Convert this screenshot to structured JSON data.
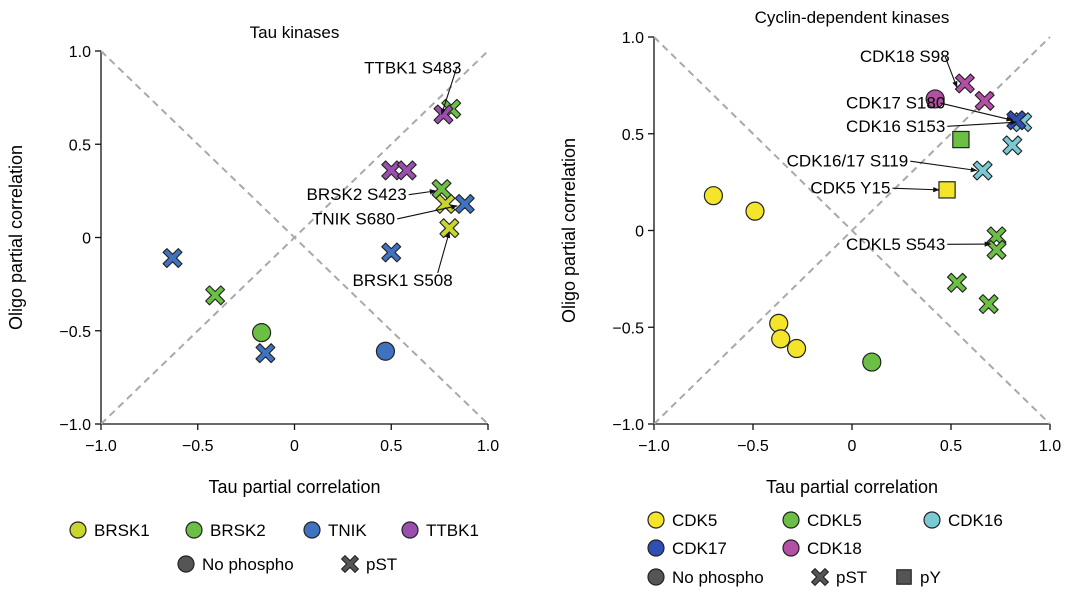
{
  "chart_data": [
    {
      "type": "scatter",
      "title": "Tau kinases",
      "xlabel": "Tau partial correlation",
      "ylabel": "Oligo partial correlation",
      "xlim": [
        -1.0,
        1.0
      ],
      "ylim": [
        -1.0,
        1.0
      ],
      "xticks": [
        "−1.0",
        "−0.5",
        "0",
        "0.5",
        "1.0"
      ],
      "yticks": [
        "−1.0",
        "−0.5",
        "0",
        "0.5",
        "1.0"
      ],
      "xtick_values": [
        -1.0,
        -0.5,
        0,
        0.5,
        1.0
      ],
      "ytick_values": [
        -1.0,
        -0.5,
        0,
        0.5,
        1.0
      ],
      "reference_lines": [
        "y = x",
        "y = -x"
      ],
      "series": [
        {
          "name": "BRSK1",
          "color": "#c9d62e",
          "points": [
            {
              "x": 0.78,
              "y": 0.18,
              "marker": "cross"
            },
            {
              "x": 0.8,
              "y": 0.05,
              "marker": "cross"
            }
          ]
        },
        {
          "name": "BRSK2",
          "color": "#6cbf45",
          "points": [
            {
              "x": -0.17,
              "y": -0.51,
              "marker": "circle"
            },
            {
              "x": -0.41,
              "y": -0.31,
              "marker": "cross"
            },
            {
              "x": 0.76,
              "y": 0.26,
              "marker": "cross"
            },
            {
              "x": 0.81,
              "y": 0.69,
              "marker": "cross"
            }
          ]
        },
        {
          "name": "TNIK",
          "color": "#3f73bf",
          "points": [
            {
              "x": 0.47,
              "y": -0.61,
              "marker": "circle"
            },
            {
              "x": -0.63,
              "y": -0.11,
              "marker": "cross"
            },
            {
              "x": -0.15,
              "y": -0.62,
              "marker": "cross"
            },
            {
              "x": 0.5,
              "y": -0.08,
              "marker": "cross"
            },
            {
              "x": 0.88,
              "y": 0.18,
              "marker": "cross"
            }
          ]
        },
        {
          "name": "TTBK1",
          "color": "#9a4fae",
          "points": [
            {
              "x": 0.5,
              "y": 0.36,
              "marker": "cross"
            },
            {
              "x": 0.58,
              "y": 0.36,
              "marker": "cross"
            },
            {
              "x": 0.77,
              "y": 0.66,
              "marker": "cross"
            }
          ]
        }
      ],
      "annotations": [
        {
          "text": "TTBK1 S483",
          "x": 0.36,
          "y": 0.88,
          "anchor": "start",
          "arrow_to": [
            0.76,
            0.66
          ]
        },
        {
          "text": "BRSK2 S423",
          "x": 0.58,
          "y": 0.2,
          "anchor": "end",
          "arrow_to": [
            0.73,
            0.25
          ]
        },
        {
          "text": "TNIK S680",
          "x": 0.52,
          "y": 0.07,
          "anchor": "end",
          "arrow_to": [
            0.84,
            0.17
          ]
        },
        {
          "text": "BRSK1 S508",
          "x": 0.3,
          "y": -0.26,
          "anchor": "start",
          "arrow_to": [
            0.8,
            0.03
          ]
        }
      ],
      "legend": {
        "position": "bottom",
        "entries": [
          {
            "label": "BRSK1",
            "color": "#c9d62e",
            "marker": "circle"
          },
          {
            "label": "BRSK2",
            "color": "#6cbf45",
            "marker": "circle"
          },
          {
            "label": "TNIK",
            "color": "#3f73bf",
            "marker": "circle"
          },
          {
            "label": "TTBK1",
            "color": "#9a4fae",
            "marker": "circle"
          }
        ],
        "shapes": [
          {
            "label": "No phospho",
            "marker": "circle"
          },
          {
            "label": "pST",
            "marker": "cross"
          }
        ]
      }
    },
    {
      "type": "scatter",
      "title": "Cyclin-dependent kinases",
      "xlabel": "Tau partial correlation",
      "ylabel": "Oligo partial correlation",
      "xlim": [
        -1.0,
        1.0
      ],
      "ylim": [
        -1.0,
        1.0
      ],
      "xticks": [
        "−1.0",
        "−0.5",
        "0",
        "0.5",
        "1.0"
      ],
      "yticks": [
        "−1.0",
        "−0.5",
        "0",
        "0.5",
        "1.0"
      ],
      "xtick_values": [
        -1.0,
        -0.5,
        0,
        0.5,
        1.0
      ],
      "ytick_values": [
        -1.0,
        -0.5,
        0,
        0.5,
        1.0
      ],
      "reference_lines": [
        "y = x",
        "y = -x"
      ],
      "series": [
        {
          "name": "CDK5",
          "color": "#f5e52a",
          "points": [
            {
              "x": -0.7,
              "y": 0.18,
              "marker": "circle"
            },
            {
              "x": -0.49,
              "y": 0.1,
              "marker": "circle"
            },
            {
              "x": -0.37,
              "y": -0.48,
              "marker": "circle"
            },
            {
              "x": -0.36,
              "y": -0.56,
              "marker": "circle"
            },
            {
              "x": -0.28,
              "y": -0.61,
              "marker": "circle"
            },
            {
              "x": 0.48,
              "y": 0.21,
              "marker": "square"
            }
          ]
        },
        {
          "name": "CDKL5",
          "color": "#6cbf45",
          "points": [
            {
              "x": 0.1,
              "y": -0.68,
              "marker": "circle"
            },
            {
              "x": 0.55,
              "y": 0.47,
              "marker": "square"
            },
            {
              "x": 0.53,
              "y": -0.27,
              "marker": "cross"
            },
            {
              "x": 0.69,
              "y": -0.38,
              "marker": "cross"
            },
            {
              "x": 0.73,
              "y": -0.03,
              "marker": "cross"
            },
            {
              "x": 0.73,
              "y": -0.1,
              "marker": "cross"
            }
          ]
        },
        {
          "name": "CDK16",
          "color": "#79cad5",
          "points": [
            {
              "x": 0.66,
              "y": 0.31,
              "marker": "cross"
            },
            {
              "x": 0.81,
              "y": 0.44,
              "marker": "cross"
            },
            {
              "x": 0.86,
              "y": 0.56,
              "marker": "cross"
            }
          ]
        },
        {
          "name": "CDK17",
          "color": "#2f4fb5",
          "points": [
            {
              "x": 0.83,
              "y": 0.57,
              "marker": "cross"
            }
          ]
        },
        {
          "name": "CDK18",
          "color": "#b44fa6",
          "points": [
            {
              "x": 0.42,
              "y": 0.68,
              "marker": "circle"
            },
            {
              "x": 0.57,
              "y": 0.76,
              "marker": "cross"
            },
            {
              "x": 0.67,
              "y": 0.67,
              "marker": "cross"
            }
          ]
        }
      ],
      "annotations": [
        {
          "text": "CDK18 S98",
          "x": 0.04,
          "y": 0.87,
          "anchor": "start",
          "arrow_to": [
            0.53,
            0.74
          ]
        },
        {
          "text": "CDK17 S180",
          "x": -0.03,
          "y": 0.63,
          "anchor": "start",
          "arrow_to": [
            0.81,
            0.57
          ]
        },
        {
          "text": "CDK16 S153",
          "x": -0.03,
          "y": 0.51,
          "anchor": "start",
          "arrow_to": [
            0.83,
            0.56
          ]
        },
        {
          "text": "CDK16/17 S119",
          "x": -0.33,
          "y": 0.33,
          "anchor": "start",
          "arrow_to": [
            0.63,
            0.31
          ]
        },
        {
          "text": "CDK5 Y15",
          "x": -0.21,
          "y": 0.19,
          "anchor": "start",
          "arrow_to": [
            0.44,
            0.21
          ]
        },
        {
          "text": "CDKL5 S543",
          "x": -0.03,
          "y": -0.1,
          "anchor": "start",
          "arrow_to": [
            0.7,
            -0.07
          ]
        }
      ],
      "legend": {
        "position": "bottom",
        "entries": [
          {
            "label": "CDK5",
            "color": "#f5e52a",
            "marker": "circle"
          },
          {
            "label": "CDKL5",
            "color": "#6cbf45",
            "marker": "circle"
          },
          {
            "label": "CDK16",
            "color": "#79cad5",
            "marker": "circle"
          },
          {
            "label": "CDK17",
            "color": "#2f4fb5",
            "marker": "circle"
          },
          {
            "label": "CDK18",
            "color": "#b44fa6",
            "marker": "circle"
          }
        ],
        "shapes": [
          {
            "label": "No phospho",
            "marker": "circle"
          },
          {
            "label": "pST",
            "marker": "cross"
          },
          {
            "label": "pY",
            "marker": "square"
          }
        ]
      }
    }
  ]
}
